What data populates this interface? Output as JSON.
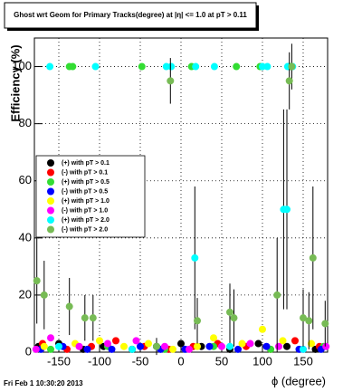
{
  "chart_data": {
    "type": "scatter",
    "title": "Ghost wrt Geom for Primary Tracks(degree) at |η| <= 1.0 at pT > 0.11",
    "x_label": "ϕ (degree)",
    "y_label": "Efficiency (%)",
    "footer": "Fri Feb  1 10:30:20 2013",
    "xlim": [
      -180,
      180
    ],
    "ylim": [
      0,
      110
    ],
    "xticks": [
      -150,
      -100,
      -50,
      0,
      50,
      100,
      150
    ],
    "yticks": [
      0,
      20,
      40,
      60,
      80,
      100
    ],
    "grid": true,
    "legend": "middle-left",
    "series": [
      {
        "name": "(+) with pT > 0.1",
        "color": "#000000",
        "x": [
          -175,
          -150,
          -120,
          -95,
          -60,
          -30,
          0,
          25,
          60,
          95,
          130,
          165
        ],
        "values": [
          2,
          3,
          1,
          2,
          1,
          2,
          3,
          2,
          1,
          3,
          2,
          1
        ]
      },
      {
        "name": "(-) with pT > 0.1",
        "color": "#ff0000",
        "x": [
          -170,
          -140,
          -110,
          -80,
          -45,
          -15,
          15,
          45,
          80,
          110,
          140,
          170
        ],
        "values": [
          3,
          1,
          2,
          4,
          2,
          1,
          2,
          3,
          2,
          1,
          4,
          2
        ]
      },
      {
        "name": "(+) with pT > 0.5",
        "color": "#33dd33",
        "x": [
          -137,
          -133,
          -48,
          13,
          68,
          97,
          133,
          136,
          -160,
          -90,
          -20,
          40,
          110,
          175
        ],
        "values": [
          100,
          100,
          100,
          100,
          100,
          100,
          100,
          100,
          1,
          2,
          1,
          2,
          1,
          2
        ]
      },
      {
        "name": "(-) with pT > 0.5",
        "color": "#0000ff",
        "x": [
          -172,
          -145,
          -115,
          -85,
          -50,
          -25,
          5,
          35,
          70,
          105,
          145,
          172
        ],
        "values": [
          1,
          2,
          1,
          1,
          2,
          1,
          1,
          2,
          1,
          2,
          1,
          1
        ]
      },
      {
        "name": "(+) with pT > 1.0",
        "color": "#ffff00",
        "x": [
          -168,
          -130,
          -100,
          -70,
          -40,
          -10,
          20,
          40,
          75,
          100,
          125,
          160
        ],
        "values": [
          2,
          3,
          4,
          2,
          3,
          1,
          2,
          5,
          3,
          8,
          4,
          3
        ]
      },
      {
        "name": "(-) with pT > 1.0",
        "color": "#ff00ff",
        "x": [
          -178,
          -160,
          -125,
          -90,
          -55,
          -20,
          10,
          50,
          85,
          120,
          150,
          178
        ],
        "values": [
          1,
          5,
          2,
          3,
          4,
          2,
          1,
          2,
          3,
          2,
          1,
          2
        ]
      },
      {
        "name": "(+) with pT > 2.0",
        "color": "#00ffff",
        "x": [
          -161,
          -105,
          -18,
          -12,
          18,
          41,
          100,
          106,
          131,
          137,
          17,
          126,
          130,
          -150,
          -60,
          60,
          150
        ],
        "values": [
          100,
          100,
          100,
          100,
          100,
          100,
          100,
          100,
          100,
          100,
          33,
          50,
          50,
          2,
          1,
          2,
          1
        ],
        "errors": [
          0,
          0,
          0,
          0,
          0,
          0,
          0,
          0,
          0,
          0,
          25,
          35,
          35,
          2,
          1,
          2,
          1
        ]
      },
      {
        "name": "(-) with pT > 2.0",
        "color": "#77bb55",
        "x": [
          -177,
          -168,
          -137,
          -118,
          -108,
          -13,
          133,
          136,
          162,
          118,
          60,
          65,
          20,
          150,
          157,
          177,
          -30
        ],
        "values": [
          25,
          20,
          16,
          12,
          12,
          95,
          95,
          100,
          33,
          20,
          14,
          12,
          11,
          12,
          11,
          10,
          2
        ],
        "errors": [
          15,
          12,
          10,
          8,
          8,
          8,
          10,
          8,
          25,
          20,
          10,
          10,
          8,
          10,
          10,
          8,
          3
        ]
      }
    ]
  }
}
